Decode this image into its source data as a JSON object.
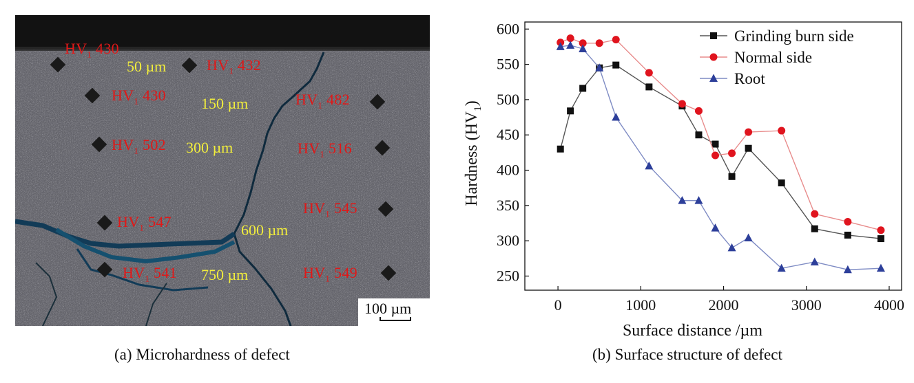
{
  "panel_a": {
    "caption": "(a) Microhardness of defect",
    "hv_points": [
      {
        "label": "HV",
        "sub": "1",
        "value": "430"
      },
      {
        "label": "HV",
        "sub": "1",
        "value": "432"
      },
      {
        "label": "HV",
        "sub": "1",
        "value": "430"
      },
      {
        "label": "HV",
        "sub": "1",
        "value": "482"
      },
      {
        "label": "HV",
        "sub": "1",
        "value": "502"
      },
      {
        "label": "HV",
        "sub": "1",
        "value": "516"
      },
      {
        "label": "HV",
        "sub": "1",
        "value": "547"
      },
      {
        "label": "HV",
        "sub": "1",
        "value": "545"
      },
      {
        "label": "HV",
        "sub": "1",
        "value": "541"
      },
      {
        "label": "HV",
        "sub": "1",
        "value": "549"
      }
    ],
    "depths": [
      "50 µm",
      "150 µm",
      "300 µm",
      "600 µm",
      "750 µm"
    ],
    "scale_bar": "100 µm",
    "colors": {
      "hv_text": "#e01818",
      "depth_text": "#f2ee3c"
    }
  },
  "panel_b": {
    "caption": "(b) Surface structure of defect"
  },
  "chart_data": {
    "type": "line",
    "title": "",
    "xlabel": "Surface distance /µm",
    "ylabel": "Hardness (HV",
    "ylabel_sub": "1",
    "ylabel_close": ")",
    "xlim": [
      -400,
      4150
    ],
    "ylim": [
      230,
      610
    ],
    "xticks": [
      0,
      1000,
      2000,
      3000,
      4000
    ],
    "yticks": [
      250,
      300,
      350,
      400,
      450,
      500,
      550,
      600
    ],
    "grid": false,
    "legend_position": "top-right",
    "series": [
      {
        "name": "Grinding burn side",
        "marker": "square",
        "color": "#111111",
        "line_color": "#555555",
        "x": [
          30,
          150,
          300,
          500,
          700,
          1100,
          1500,
          1700,
          1900,
          2100,
          2300,
          2700,
          3100,
          3500,
          3900
        ],
        "y": [
          430,
          484,
          516,
          545,
          549,
          518,
          491,
          450,
          437,
          391,
          431,
          382,
          317,
          308,
          303
        ]
      },
      {
        "name": "Normal side",
        "marker": "circle",
        "color": "#e0141e",
        "line_color": "#e88c8c",
        "x": [
          30,
          150,
          300,
          500,
          700,
          1100,
          1500,
          1700,
          1900,
          2100,
          2300,
          2700,
          3100,
          3500,
          3900
        ],
        "y": [
          581,
          587,
          580,
          580,
          585,
          538,
          494,
          484,
          421,
          424,
          454,
          456,
          338,
          327,
          315
        ]
      },
      {
        "name": "Root",
        "marker": "triangle",
        "color": "#2d3f9a",
        "line_color": "#7f8cc4",
        "x": [
          30,
          150,
          300,
          500,
          700,
          1100,
          1500,
          1700,
          1900,
          2100,
          2300,
          2700,
          3100,
          3500,
          3900
        ],
        "y": [
          575,
          577,
          572,
          545,
          475,
          406,
          357,
          357,
          318,
          290,
          304,
          261,
          270,
          259,
          261
        ]
      }
    ]
  }
}
